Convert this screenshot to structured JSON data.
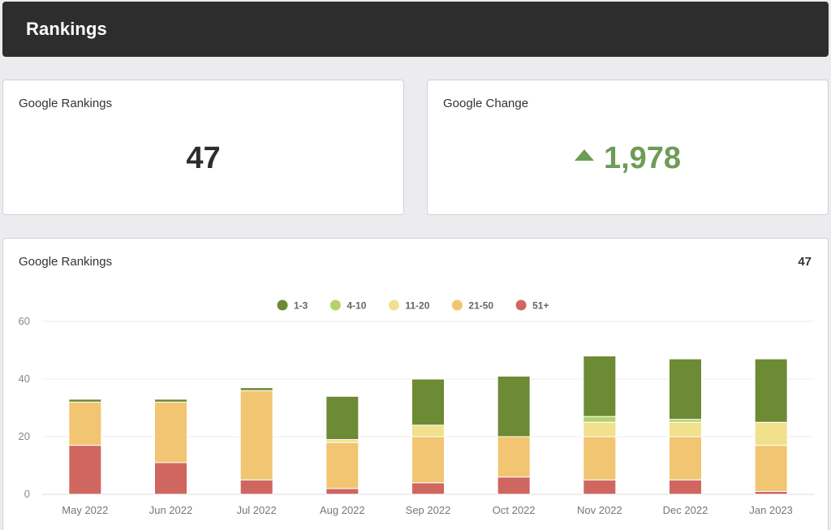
{
  "header": {
    "title": "Rankings"
  },
  "cards": {
    "rankings": {
      "title": "Google Rankings",
      "value": "47"
    },
    "change": {
      "title": "Google Change",
      "value": "1,978",
      "icon": "caret-up-icon",
      "color": "#6d9c56"
    }
  },
  "chart_card": {
    "title": "Google Rankings",
    "total": "47"
  },
  "chart_data": {
    "type": "bar",
    "stacked": true,
    "categories": [
      "May 2022",
      "Jun 2022",
      "Jul 2022",
      "Aug 2022",
      "Sep 2022",
      "Oct 2022",
      "Nov 2022",
      "Dec 2022",
      "Jan 2023"
    ],
    "series": [
      {
        "name": "51+",
        "color": "#cf6660",
        "values": [
          17,
          11,
          5,
          2,
          4,
          6,
          5,
          5,
          1
        ]
      },
      {
        "name": "21-50",
        "color": "#f2c572",
        "values": [
          15,
          21,
          31,
          16,
          16,
          14,
          15,
          15,
          16
        ]
      },
      {
        "name": "11-20",
        "color": "#f1e08c",
        "values": [
          0,
          0,
          0,
          1,
          4,
          0,
          5,
          5,
          8
        ]
      },
      {
        "name": "4-10",
        "color": "#b4d26a",
        "values": [
          0,
          0,
          0,
          0,
          0,
          0,
          2,
          1,
          0
        ]
      },
      {
        "name": "1-3",
        "color": "#6d8a35",
        "values": [
          1,
          1,
          1,
          15,
          16,
          21,
          21,
          21,
          22
        ]
      }
    ],
    "legend_order": [
      "1-3",
      "4-10",
      "11-20",
      "21-50",
      "51+"
    ],
    "legend_placement": "top-center",
    "yticks": [
      0,
      20,
      40,
      60
    ],
    "ylim": [
      0,
      60
    ],
    "grid": true
  }
}
